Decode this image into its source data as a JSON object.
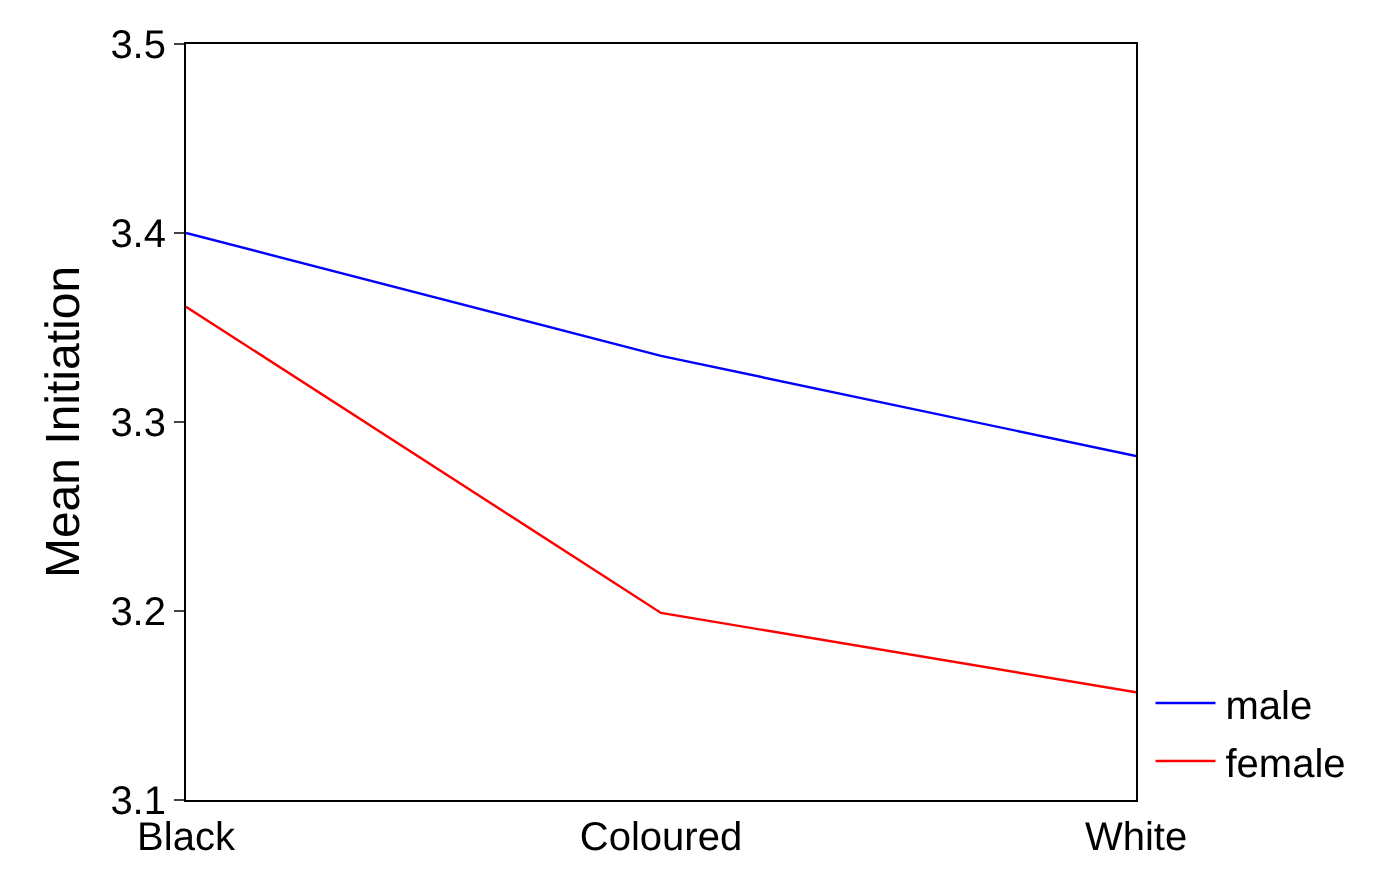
{
  "chart_data": {
    "type": "line",
    "ylabel": "Mean Initiation",
    "categories": [
      "Black",
      "Coloured",
      "White"
    ],
    "series": [
      {
        "name": "male",
        "color": "#0000ff",
        "values": [
          3.4,
          3.335,
          3.282
        ]
      },
      {
        "name": "female",
        "color": "#ff0000",
        "values": [
          3.361,
          3.199,
          3.157
        ]
      }
    ],
    "ylim": [
      3.1,
      3.5
    ],
    "yticks": [
      3.1,
      3.2,
      3.3,
      3.4,
      3.5
    ],
    "legend": "bottom right",
    "marker": "none",
    "line_style": "solid"
  }
}
